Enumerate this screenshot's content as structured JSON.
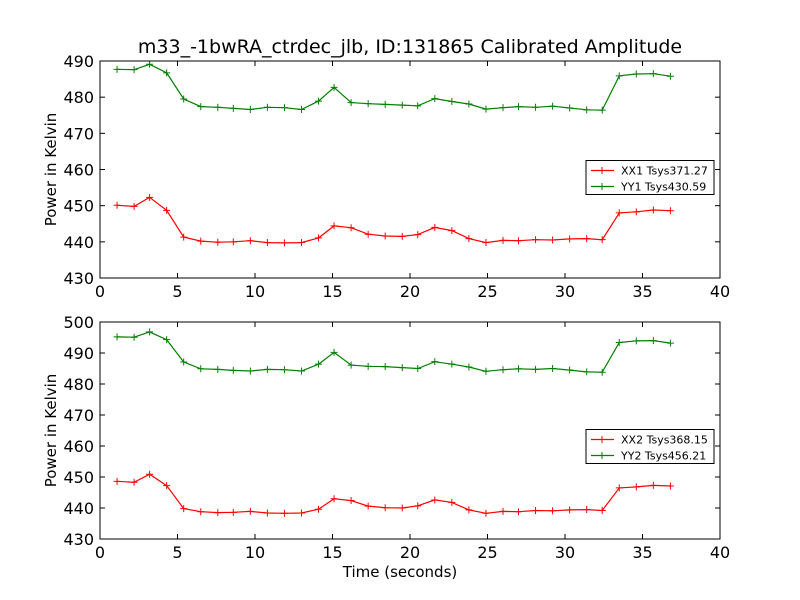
{
  "figure": {
    "title": "m33_-1bwRA_ctrdec_jlb, ID:131865 Calibrated Amplitude"
  },
  "chart_data": [
    {
      "type": "line",
      "xlabel": "",
      "ylabel": "Power in Kelvin",
      "xlim": [
        0,
        40
      ],
      "ylim": [
        430,
        490
      ],
      "xticks": [
        0,
        5,
        10,
        15,
        20,
        25,
        30,
        35,
        40
      ],
      "yticks": [
        430,
        440,
        450,
        460,
        470,
        480,
        490
      ],
      "legend_position": "center-right",
      "x": [
        1.1,
        2.2,
        3.2,
        4.3,
        5.4,
        6.5,
        7.6,
        8.6,
        9.7,
        10.8,
        11.9,
        13.0,
        14.1,
        15.1,
        16.2,
        17.3,
        18.4,
        19.5,
        20.5,
        21.6,
        22.7,
        23.8,
        24.9,
        26.0,
        27.0,
        28.1,
        29.2,
        30.3,
        31.4,
        32.4,
        33.5,
        34.6,
        35.7,
        36.8
      ],
      "series": [
        {
          "name": "XX1 Tsys371.27",
          "color": "#ff0000",
          "values": [
            450.1,
            449.8,
            452.3,
            448.7,
            441.3,
            440.2,
            439.9,
            440.0,
            440.3,
            439.8,
            439.7,
            439.8,
            441.1,
            444.4,
            443.9,
            442.1,
            441.6,
            441.5,
            442.0,
            444.0,
            443.1,
            440.9,
            439.8,
            440.4,
            440.3,
            440.6,
            440.5,
            440.8,
            440.9,
            440.6,
            448.0,
            448.3,
            448.8,
            448.6
          ]
        },
        {
          "name": "YY1 Tsys430.59",
          "color": "#008000",
          "values": [
            487.7,
            487.6,
            489.1,
            486.7,
            479.5,
            477.4,
            477.2,
            476.9,
            476.6,
            477.2,
            477.1,
            476.6,
            478.9,
            482.7,
            478.5,
            478.2,
            478.0,
            477.8,
            477.6,
            479.6,
            478.8,
            478.1,
            476.7,
            477.1,
            477.4,
            477.2,
            477.5,
            477.0,
            476.5,
            476.4,
            485.9,
            486.4,
            486.5,
            485.8
          ]
        }
      ]
    },
    {
      "type": "line",
      "xlabel": "Time (seconds)",
      "ylabel": "Power in Kelvin",
      "xlim": [
        0,
        40
      ],
      "ylim": [
        430,
        500
      ],
      "xticks": [
        0,
        5,
        10,
        15,
        20,
        25,
        30,
        35,
        40
      ],
      "yticks": [
        430,
        440,
        450,
        460,
        470,
        480,
        490,
        500
      ],
      "legend_position": "center-right",
      "x": [
        1.1,
        2.2,
        3.2,
        4.3,
        5.4,
        6.5,
        7.6,
        8.6,
        9.7,
        10.8,
        11.9,
        13.0,
        14.1,
        15.1,
        16.2,
        17.3,
        18.4,
        19.5,
        20.5,
        21.6,
        22.7,
        23.8,
        24.9,
        26.0,
        27.0,
        28.1,
        29.2,
        30.3,
        31.4,
        32.4,
        33.5,
        34.6,
        35.7,
        36.8
      ],
      "series": [
        {
          "name": "XX2 Tsys368.15",
          "color": "#ff0000",
          "values": [
            448.6,
            448.3,
            450.9,
            447.2,
            439.8,
            438.8,
            438.5,
            438.6,
            438.9,
            438.4,
            438.3,
            438.4,
            439.6,
            443.0,
            442.4,
            440.6,
            440.1,
            440.0,
            440.7,
            442.6,
            441.8,
            439.4,
            438.3,
            438.9,
            438.8,
            439.2,
            439.1,
            439.4,
            439.5,
            439.2,
            446.5,
            446.8,
            447.3,
            447.1
          ]
        },
        {
          "name": "YY2 Tsys456.21",
          "color": "#008000",
          "values": [
            495.2,
            495.1,
            496.8,
            494.3,
            487.1,
            484.9,
            484.7,
            484.4,
            484.2,
            484.7,
            484.6,
            484.2,
            486.4,
            490.2,
            486.1,
            485.7,
            485.6,
            485.3,
            485.0,
            487.2,
            486.4,
            485.5,
            484.1,
            484.6,
            484.9,
            484.7,
            485.0,
            484.5,
            483.9,
            483.8,
            493.4,
            493.9,
            494.0,
            493.2
          ]
        }
      ]
    }
  ]
}
